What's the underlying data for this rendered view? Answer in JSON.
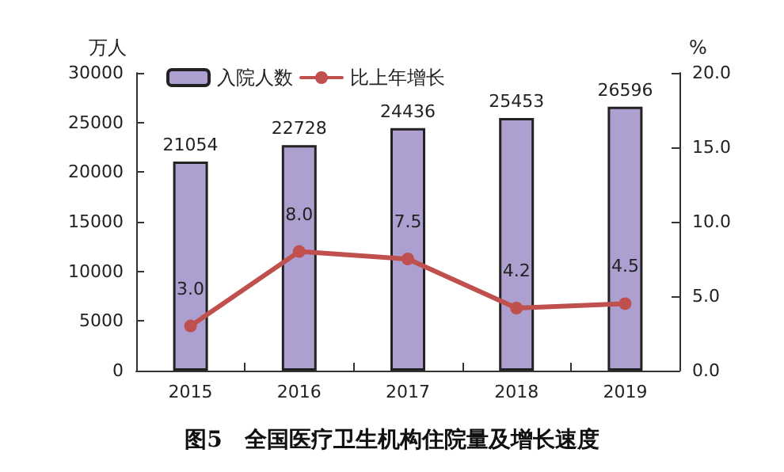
{
  "chart_data": {
    "type": "bar",
    "title": "图5　全国医疗卫生机构住院量及增长速度",
    "ylabel": "万人",
    "y2label": "%",
    "categories": [
      "2015",
      "2016",
      "2017",
      "2018",
      "2019"
    ],
    "series": [
      {
        "name": "入院人数",
        "color": "#ad9fd0",
        "values": [
          21054,
          22728,
          24436,
          25453,
          26596
        ],
        "value_labels": [
          "21054",
          "22728",
          "24436",
          "25453",
          "26596"
        ]
      },
      {
        "name": "比上年增长",
        "type": "line",
        "axis": "y2",
        "color": "#c0504d",
        "marker": "circle",
        "values": [
          3.0,
          8.0,
          7.5,
          4.2,
          4.5
        ],
        "value_labels": [
          "3.0",
          "8.0",
          "7.5",
          "4.2",
          "4.5"
        ]
      }
    ],
    "ylim": [
      0,
      30000
    ],
    "yticks": [
      0,
      5000,
      10000,
      15000,
      20000,
      25000,
      30000
    ],
    "y2lim": [
      0,
      20
    ],
    "y2ticks": [
      {
        "value": 0,
        "label": "0.0"
      },
      {
        "value": 5,
        "label": "5.0"
      },
      {
        "value": 10,
        "label": "10.0"
      },
      {
        "value": 15,
        "label": "15.0"
      },
      {
        "value": 20,
        "label": "20.0"
      }
    ],
    "grid": false,
    "legend": "top"
  }
}
